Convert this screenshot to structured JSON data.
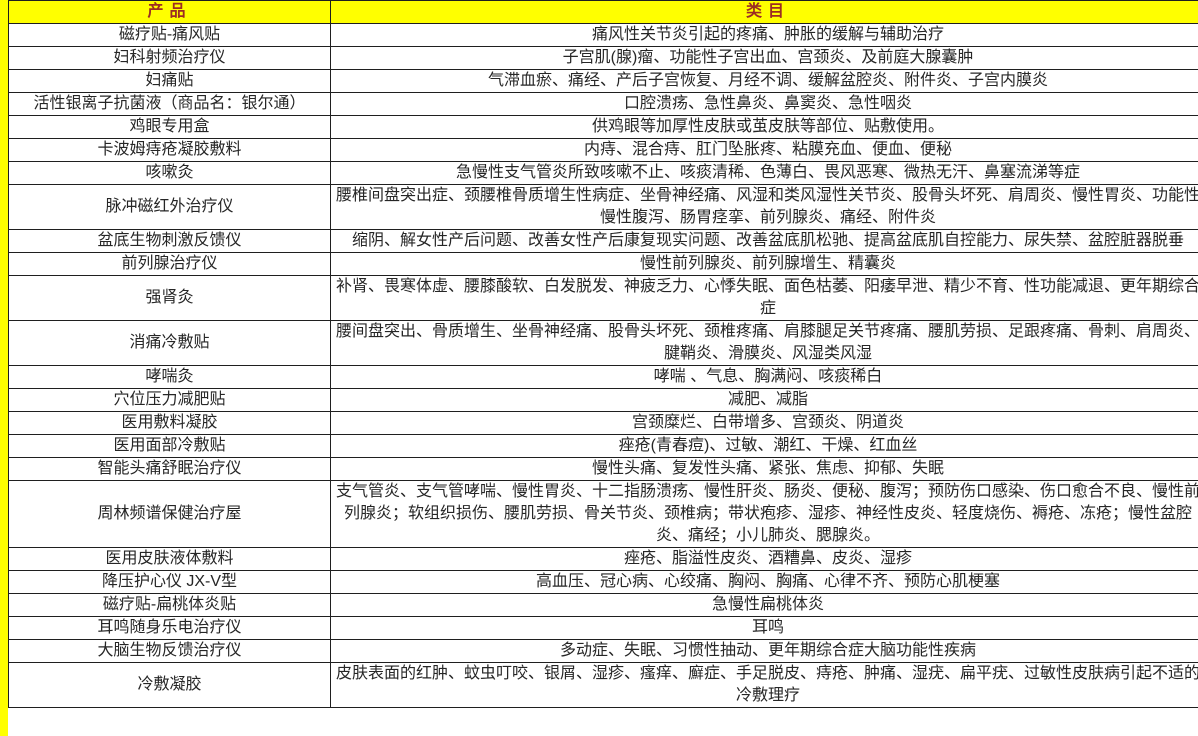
{
  "colors": {
    "header_bg": "#ffff00",
    "header_text": "#9c2d23",
    "border": "#1f1f1f",
    "cell_text": "#262626",
    "left_strip": "#ffff00"
  },
  "table": {
    "headers": {
      "product": "产品",
      "category": "类目"
    },
    "rows": [
      {
        "product": "磁疗贴-痛风贴",
        "category": "痛风性关节炎引起的疼痛、肿胀的缓解与辅助治疗"
      },
      {
        "product": "妇科射频治疗仪",
        "category": "子宫肌(腺)瘤、功能性子宫出血、宫颈炎、及前庭大腺囊肿"
      },
      {
        "product": "妇痛贴",
        "category": "气滞血瘀、痛经、产后子宫恢复、月经不调、缓解盆腔炎、附件炎、子宫内膜炎"
      },
      {
        "product": "活性银离子抗菌液（商品名：银尔通）",
        "category": "口腔溃疡、急性鼻炎、鼻窦炎、急性咽炎"
      },
      {
        "product": "鸡眼专用盒",
        "category": "供鸡眼等加厚性皮肤或茧皮肤等部位、贴敷使用。"
      },
      {
        "product": "卡波姆痔疮凝胶敷料",
        "category": "内痔、混合痔、肛门坠胀疼、粘膜充血、便血、便秘"
      },
      {
        "product": "咳嗽灸",
        "category": "急慢性支气管炎所致咳嗽不止、咳痰清稀、色薄白、畏风恶寒、微热无汗、鼻塞流涕等症"
      },
      {
        "product": "脉冲磁红外治疗仪",
        "category": "腰椎间盘突出症、颈腰椎骨质增生性病症、坐骨神经痛、风湿和类风湿性关节炎、股骨头坏死、肩周炎、慢性胃炎、功能性慢性腹泻、肠胃痉挛、前列腺炎、痛经、附件炎"
      },
      {
        "product": "盆底生物刺激反馈仪",
        "category": "缩阴、解女性产后问题、改善女性产后康复现实问题、改善盆底肌松驰、提高盆底肌自控能力、尿失禁、盆腔脏器脱垂"
      },
      {
        "product": "前列腺治疗仪",
        "category": "慢性前列腺炎、前列腺增生、精囊炎"
      },
      {
        "product": "强肾灸",
        "category": "补肾、畏寒体虚、腰膝酸软、白发脱发、神疲乏力、心悸失眠、面色枯萎、阳痿早泄、精少不育、性功能减退、更年期综合症"
      },
      {
        "product": "消痛冷敷贴",
        "category": "腰间盘突出、骨质增生、坐骨神经痛、股骨头坏死、颈椎疼痛、肩膝腿足关节疼痛、腰肌劳损、足跟疼痛、骨刺、肩周炎、腱鞘炎、滑膜炎、风湿类风湿"
      },
      {
        "product": "哮喘灸",
        "category": "哮喘 、气息、胸满闷、咳痰稀白"
      },
      {
        "product": "穴位压力减肥贴",
        "category": "减肥、减脂"
      },
      {
        "product": "医用敷料凝胶",
        "category": "宫颈糜烂、白带增多、宫颈炎、阴道炎"
      },
      {
        "product": "医用面部冷敷贴",
        "category": "痤疮(青春痘)、过敏、潮红、干燥、红血丝"
      },
      {
        "product": "智能头痛舒眠治疗仪",
        "category": "慢性头痛、复发性头痛、紧张、焦虑、抑郁、失眠"
      },
      {
        "product": "周林频谱保健治疗屋",
        "category": "支气管炎、支气管哮喘、慢性胃炎、十二指肠溃疡、慢性肝炎、肠炎、便秘、腹泻；预防伤口感染、伤口愈合不良、慢性前列腺炎；软组织损伤、腰肌劳损、骨关节炎、颈椎病；带状疱疹、湿疹、神经性皮炎、轻度烧伤、褥疮、冻疮；慢性盆腔炎、痛经；小儿肺炎、腮腺炎。"
      },
      {
        "product": "医用皮肤液体敷料",
        "category": "痤疮、脂溢性皮炎、酒糟鼻、皮炎、湿疹"
      },
      {
        "product": "降压护心仪 JX-V型",
        "category": "高血压、冠心病、心绞痛、胸闷、胸痛、心律不齐、预防心肌梗塞"
      },
      {
        "product": "磁疗贴-扁桃体炎贴",
        "category": "急慢性扁桃体炎"
      },
      {
        "product": "耳鸣随身乐电治疗仪",
        "category": "耳鸣"
      },
      {
        "product": "大脑生物反馈治疗仪",
        "category": "多动症、失眠、习惯性抽动、更年期综合症大脑功能性疾病"
      },
      {
        "product": "冷敷凝胶",
        "category": "皮肤表面的红肿、蚊虫叮咬、银屑、湿疹、瘙痒、廯症、手足脱皮、痔疮、肿痛、湿疣、扁平疣、过敏性皮肤病引起不适的冷敷理疗"
      }
    ]
  }
}
